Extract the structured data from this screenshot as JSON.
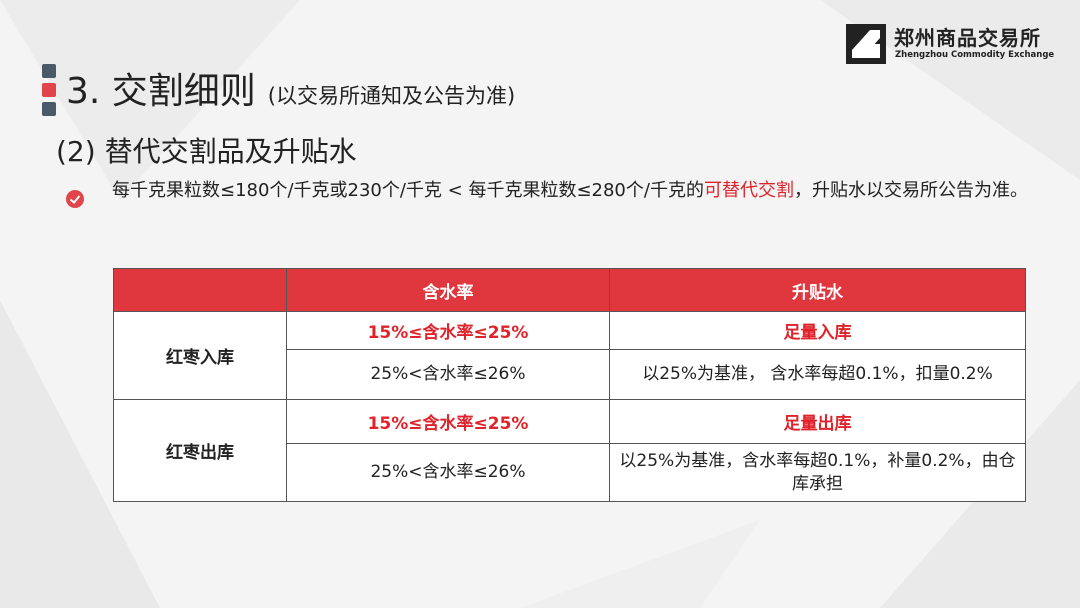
{
  "logo": {
    "name_cn": "郑州商品交易所",
    "name_en": "Zhengzhou Commodity Exchange"
  },
  "title": {
    "main": "3. 交割细则",
    "note": "(以交易所通知及公告为准)"
  },
  "subtitle": "(2) 替代交割品及升贴水",
  "bullet": {
    "text_before": "每千克果粒数≤180个/千克或230个/千克 < 每千克果粒数≤280个/千克的",
    "highlight": "可替代交割",
    "text_after": "，升贴水以交易所公告为准。"
  },
  "table": {
    "headers": [
      "",
      "含水率",
      "升贴水"
    ],
    "groups": [
      {
        "label": "红枣入库",
        "rows": [
          {
            "moisture": "15%≤含水率≤25%",
            "premium": "足量入库",
            "highlight": true
          },
          {
            "moisture": "25%<含水率≤26%",
            "premium": "以25%为基准， 含水率每超0.1%，扣量0.2%",
            "highlight": false
          }
        ]
      },
      {
        "label": "红枣出库",
        "rows": [
          {
            "moisture": "15%≤含水率≤25%",
            "premium": "足量出库",
            "highlight": true
          },
          {
            "moisture": "25%<含水率≤26%",
            "premium": "以25%为基准，含水率每超0.1%，补量0.2%，由仓库承担",
            "highlight": false
          }
        ]
      }
    ]
  },
  "colors": {
    "accent_red": "#e0363d",
    "highlight_red": "#e0232b",
    "bar_gray": "#4a5a6b"
  }
}
